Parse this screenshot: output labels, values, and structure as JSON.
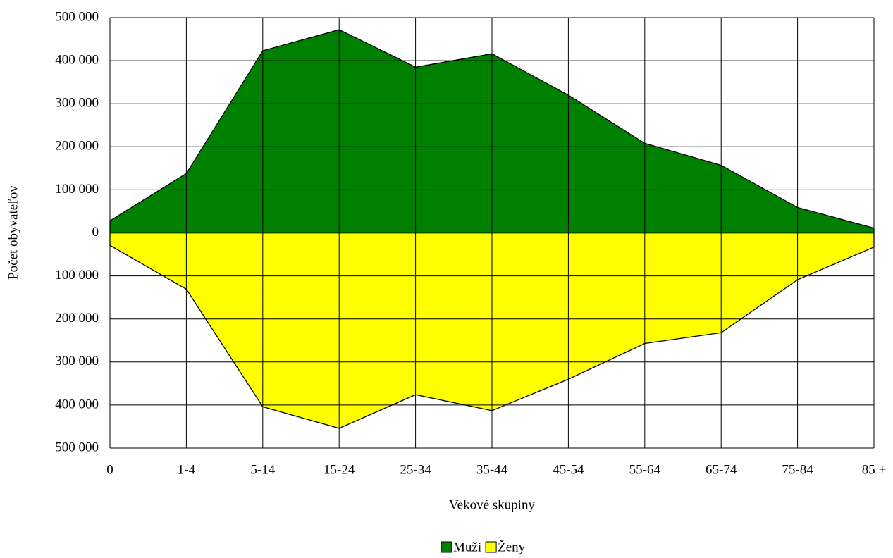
{
  "chart_data": {
    "type": "area",
    "x_label": "Vekové skupiny",
    "y_label": "Počet obyvateľov",
    "categories": [
      "0",
      "1-4",
      "5-14",
      "15-24",
      "25-34",
      "35-44",
      "45-54",
      "55-64",
      "65-74",
      "75-84",
      "85 +"
    ],
    "series": [
      {
        "name": "Muži",
        "color": "#008000",
        "values": [
          28000,
          138000,
          423000,
          472000,
          385000,
          416000,
          320000,
          208000,
          157000,
          59000,
          11000
        ]
      },
      {
        "name": "Ženy",
        "color": "#ffff00",
        "values": [
          -29000,
          -131000,
          -404000,
          -454000,
          -376000,
          -413000,
          -340000,
          -257000,
          -232000,
          -109000,
          -33000
        ]
      }
    ],
    "ylim": [
      -500000,
      500000
    ],
    "yticks": [
      {
        "value": -500000,
        "label": "500 000"
      },
      {
        "value": -400000,
        "label": "400 000"
      },
      {
        "value": -300000,
        "label": "300 000"
      },
      {
        "value": -200000,
        "label": "200 000"
      },
      {
        "value": -100000,
        "label": "100 000"
      },
      0,
      {
        "value": 100000,
        "label": "100 000"
      },
      {
        "value": 200000,
        "label": "200 000"
      },
      {
        "value": 300000,
        "label": "300 000"
      },
      {
        "value": 400000,
        "label": "400 000"
      },
      {
        "value": 500000,
        "label": "500 000"
      }
    ],
    "grid": true,
    "legend": "bottom"
  }
}
